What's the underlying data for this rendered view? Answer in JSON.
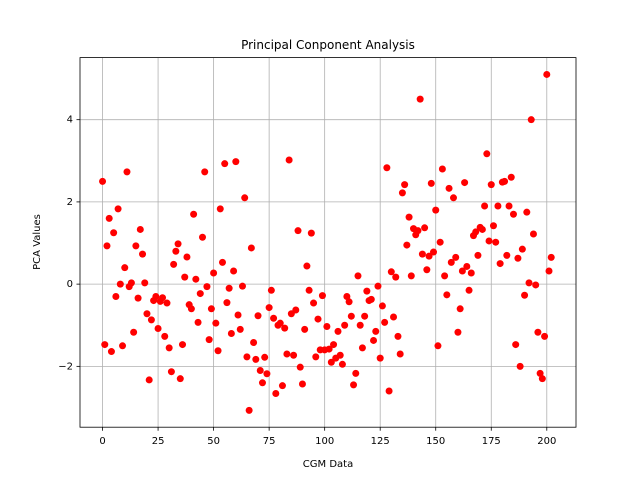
{
  "chart_data": {
    "type": "scatter",
    "title": "Principal Conponent Analysis",
    "x_label": "CGM Data",
    "y_label": "PCA Values",
    "x": [
      0,
      1,
      2,
      3,
      4,
      5,
      6,
      7,
      8,
      9,
      10,
      11,
      12,
      13,
      14,
      15,
      16,
      17,
      18,
      19,
      20,
      21,
      22,
      23,
      24,
      25,
      26,
      27,
      28,
      29,
      30,
      31,
      32,
      33,
      34,
      35,
      36,
      37,
      38,
      39,
      40,
      41,
      42,
      43,
      44,
      45,
      46,
      47,
      48,
      49,
      50,
      51,
      52,
      53,
      54,
      55,
      56,
      57,
      58,
      59,
      60,
      61,
      62,
      63,
      64,
      65,
      66,
      67,
      68,
      69,
      70,
      71,
      72,
      73,
      74,
      75,
      76,
      77,
      78,
      79,
      80,
      81,
      82,
      83,
      84,
      85,
      86,
      87,
      88,
      89,
      90,
      91,
      92,
      93,
      94,
      95,
      96,
      97,
      98,
      99,
      100,
      101,
      102,
      103,
      104,
      105,
      106,
      107,
      108,
      109,
      110,
      111,
      112,
      113,
      114,
      115,
      116,
      117,
      118,
      119,
      120,
      121,
      122,
      123,
      124,
      125,
      126,
      127,
      128,
      129,
      130,
      131,
      132,
      133,
      134,
      135,
      136,
      137,
      138,
      139,
      140,
      141,
      142,
      143,
      144,
      145,
      146,
      147,
      148,
      149,
      150,
      151,
      152,
      153,
      154,
      155,
      156,
      157,
      158,
      159,
      160,
      161,
      162,
      163,
      164,
      165,
      166,
      167,
      168,
      169,
      170,
      171,
      172,
      173,
      174,
      175,
      176,
      177,
      178,
      179,
      180,
      181,
      182,
      183,
      184,
      185,
      186,
      187,
      188,
      189,
      190,
      191,
      192,
      193,
      194,
      195,
      196,
      197,
      198,
      199,
      200,
      201,
      202
    ],
    "series": [
      {
        "color": "#ff0000",
        "values": [
          2.5,
          -1.47,
          0.93,
          1.6,
          -1.64,
          1.25,
          -0.3,
          1.83,
          0.0,
          -1.5,
          0.4,
          2.73,
          -0.06,
          0.03,
          -1.17,
          0.93,
          -0.34,
          1.33,
          0.73,
          0.03,
          -0.72,
          -2.33,
          -0.87,
          -0.4,
          -0.3,
          -1.08,
          -0.42,
          -0.33,
          -1.27,
          -0.46,
          -1.55,
          -2.13,
          0.48,
          0.8,
          0.98,
          -2.3,
          -1.47,
          0.17,
          0.66,
          -0.5,
          -0.6,
          1.7,
          0.12,
          -0.93,
          -0.23,
          1.14,
          2.73,
          -0.06,
          -1.35,
          -0.6,
          0.27,
          -0.95,
          -1.62,
          1.83,
          0.53,
          2.93,
          -0.45,
          -0.1,
          -1.2,
          0.32,
          2.98,
          -0.75,
          -1.1,
          -0.05,
          2.1,
          -1.77,
          -3.07,
          0.88,
          -1.42,
          -1.83,
          -0.77,
          -2.1,
          -2.4,
          -1.78,
          -2.18,
          -0.57,
          -0.15,
          -0.83,
          -2.66,
          -1.0,
          -0.95,
          -2.47,
          -1.07,
          -1.7,
          3.02,
          -0.72,
          -1.73,
          -0.63,
          1.3,
          -2.02,
          -2.43,
          -1.1,
          0.44,
          -0.15,
          1.24,
          -0.46,
          -1.77,
          -0.85,
          -1.6,
          -0.28,
          -1.6,
          -1.03,
          -1.58,
          -1.9,
          -1.47,
          -1.8,
          -1.15,
          -1.73,
          -1.95,
          -1.0,
          -0.3,
          -0.43,
          -0.78,
          -2.45,
          -2.17,
          0.2,
          -1.0,
          -1.55,
          -0.78,
          -0.17,
          -0.4,
          -0.37,
          -1.37,
          -1.15,
          -0.05,
          -1.8,
          -0.53,
          -0.93,
          2.83,
          -2.6,
          0.3,
          -0.8,
          0.17,
          -1.27,
          -1.7,
          2.22,
          2.42,
          0.95,
          1.63,
          0.2,
          1.35,
          1.2,
          1.3,
          4.5,
          0.73,
          1.37,
          0.35,
          0.68,
          2.45,
          0.78,
          1.8,
          -1.5,
          1.02,
          2.8,
          0.2,
          -0.26,
          2.33,
          0.53,
          2.1,
          0.65,
          -1.17,
          -0.6,
          0.32,
          2.47,
          0.43,
          -0.15,
          0.27,
          1.18,
          1.27,
          0.7,
          1.38,
          1.33,
          1.9,
          3.17,
          1.05,
          2.42,
          1.42,
          1.02,
          1.9,
          0.5,
          2.48,
          2.5,
          0.7,
          1.9,
          2.6,
          1.7,
          -1.47,
          0.63,
          -2.0,
          0.85,
          -0.27,
          1.75,
          0.03,
          4.0,
          1.22,
          -0.02,
          -1.17,
          -2.17,
          -2.3,
          -1.27,
          5.1,
          0.32,
          0.65
        ]
      }
    ],
    "xlim": [
      -10.15,
      213.15
    ],
    "ylim": [
      -3.48,
      5.51
    ],
    "xticks": [
      0,
      25,
      50,
      75,
      100,
      125,
      150,
      175,
      200
    ],
    "yticks": [
      {
        "value": -2,
        "label": "−2"
      },
      0,
      2,
      4
    ],
    "grid": true
  }
}
